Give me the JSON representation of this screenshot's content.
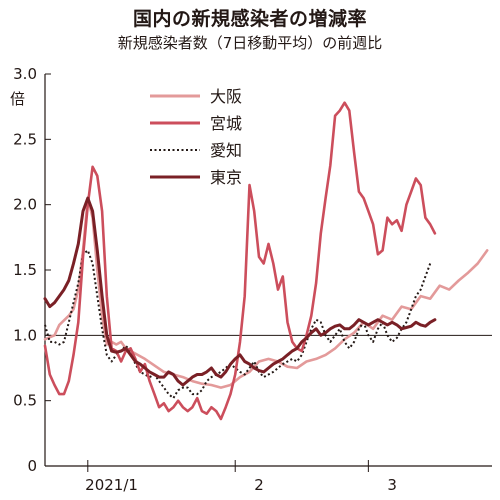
{
  "chart_data": {
    "type": "line",
    "title": "国内の新規感染者の増減率",
    "subtitle": "新規感染者数（7日移動平均）の前週比",
    "ylabel": "倍",
    "ylim": [
      0,
      3.0
    ],
    "yticks": [
      "0",
      "0.5",
      "1.0",
      "1.5",
      "2.0",
      "2.5",
      "3.0"
    ],
    "xticks": [
      {
        "label": "2021/1",
        "x": 14
      },
      {
        "label": "2",
        "x": 45
      },
      {
        "label": "3",
        "x": 73
      }
    ],
    "xlim": [
      0,
      94
    ],
    "xgrid_days": [
      9,
      40,
      68
    ],
    "reference_line": 1.0,
    "legend_placement": "top-center",
    "series": [
      {
        "name": "大阪",
        "color": "#e39a9a",
        "style": "solid",
        "points": [
          [
            0,
            0.97
          ],
          [
            2,
            1.0
          ],
          [
            3,
            1.08
          ],
          [
            5,
            1.15
          ],
          [
            6,
            1.2
          ],
          [
            7,
            1.35
          ],
          [
            8,
            1.65
          ],
          [
            9,
            2.05
          ],
          [
            10,
            1.9
          ],
          [
            11,
            1.5
          ],
          [
            12,
            1.15
          ],
          [
            13,
            0.93
          ],
          [
            14,
            0.95
          ],
          [
            15,
            0.93
          ],
          [
            16,
            0.95
          ],
          [
            17,
            0.9
          ],
          [
            19,
            0.86
          ],
          [
            21,
            0.82
          ],
          [
            23,
            0.77
          ],
          [
            25,
            0.72
          ],
          [
            27,
            0.7
          ],
          [
            29,
            0.68
          ],
          [
            31,
            0.65
          ],
          [
            33,
            0.63
          ],
          [
            35,
            0.62
          ],
          [
            37,
            0.6
          ],
          [
            39,
            0.62
          ],
          [
            41,
            0.68
          ],
          [
            43,
            0.72
          ],
          [
            45,
            0.8
          ],
          [
            47,
            0.82
          ],
          [
            49,
            0.8
          ],
          [
            51,
            0.76
          ],
          [
            53,
            0.75
          ],
          [
            55,
            0.8
          ],
          [
            57,
            0.82
          ],
          [
            59,
            0.85
          ],
          [
            61,
            0.9
          ],
          [
            63,
            0.97
          ],
          [
            65,
            1.02
          ],
          [
            67,
            1.1
          ],
          [
            69,
            1.05
          ],
          [
            71,
            1.15
          ],
          [
            73,
            1.12
          ],
          [
            75,
            1.22
          ],
          [
            77,
            1.2
          ],
          [
            79,
            1.3
          ],
          [
            81,
            1.28
          ],
          [
            83,
            1.38
          ],
          [
            85,
            1.35
          ],
          [
            87,
            1.42
          ],
          [
            89,
            1.48
          ],
          [
            91,
            1.55
          ],
          [
            93,
            1.65
          ]
        ]
      },
      {
        "name": "宮城",
        "color": "#cc4e5c",
        "style": "solid",
        "points": [
          [
            0,
            0.92
          ],
          [
            1,
            0.7
          ],
          [
            2,
            0.62
          ],
          [
            3,
            0.55
          ],
          [
            4,
            0.55
          ],
          [
            5,
            0.65
          ],
          [
            6,
            0.85
          ],
          [
            7,
            1.1
          ],
          [
            8,
            1.6
          ],
          [
            9,
            2.0
          ],
          [
            10,
            2.29
          ],
          [
            11,
            2.22
          ],
          [
            12,
            1.95
          ],
          [
            13,
            1.3
          ],
          [
            14,
            0.9
          ],
          [
            15,
            0.88
          ],
          [
            16,
            0.8
          ],
          [
            17,
            0.88
          ],
          [
            18,
            0.9
          ],
          [
            19,
            0.82
          ],
          [
            20,
            0.72
          ],
          [
            21,
            0.78
          ],
          [
            22,
            0.65
          ],
          [
            23,
            0.55
          ],
          [
            24,
            0.45
          ],
          [
            25,
            0.48
          ],
          [
            26,
            0.42
          ],
          [
            27,
            0.45
          ],
          [
            28,
            0.5
          ],
          [
            29,
            0.45
          ],
          [
            30,
            0.42
          ],
          [
            31,
            0.45
          ],
          [
            32,
            0.52
          ],
          [
            33,
            0.42
          ],
          [
            34,
            0.4
          ],
          [
            35,
            0.45
          ],
          [
            36,
            0.42
          ],
          [
            37,
            0.36
          ],
          [
            38,
            0.45
          ],
          [
            39,
            0.55
          ],
          [
            40,
            0.7
          ],
          [
            41,
            0.95
          ],
          [
            42,
            1.3
          ],
          [
            43,
            2.15
          ],
          [
            44,
            1.95
          ],
          [
            45,
            1.6
          ],
          [
            46,
            1.55
          ],
          [
            47,
            1.7
          ],
          [
            48,
            1.55
          ],
          [
            49,
            1.35
          ],
          [
            50,
            1.45
          ],
          [
            51,
            1.1
          ],
          [
            52,
            0.95
          ],
          [
            53,
            0.9
          ],
          [
            54,
            0.88
          ],
          [
            55,
            1.0
          ],
          [
            56,
            1.15
          ],
          [
            57,
            1.4
          ],
          [
            58,
            1.78
          ],
          [
            59,
            2.05
          ],
          [
            60,
            2.3
          ],
          [
            61,
            2.68
          ],
          [
            62,
            2.72
          ],
          [
            63,
            2.78
          ],
          [
            64,
            2.72
          ],
          [
            65,
            2.4
          ],
          [
            66,
            2.1
          ],
          [
            67,
            2.05
          ],
          [
            68,
            1.95
          ],
          [
            69,
            1.85
          ],
          [
            70,
            1.62
          ],
          [
            71,
            1.65
          ],
          [
            72,
            1.9
          ],
          [
            73,
            1.85
          ],
          [
            74,
            1.88
          ],
          [
            75,
            1.8
          ],
          [
            76,
            2.0
          ],
          [
            77,
            2.1
          ],
          [
            78,
            2.2
          ],
          [
            79,
            2.15
          ],
          [
            80,
            1.9
          ],
          [
            81,
            1.85
          ],
          [
            82,
            1.78
          ]
        ]
      },
      {
        "name": "愛知",
        "color": "#231815",
        "style": "dotted",
        "points": [
          [
            0,
            1.08
          ],
          [
            1,
            0.95
          ],
          [
            2,
            0.95
          ],
          [
            3,
            0.93
          ],
          [
            4,
            0.95
          ],
          [
            5,
            1.1
          ],
          [
            6,
            1.25
          ],
          [
            7,
            1.4
          ],
          [
            8,
            1.62
          ],
          [
            9,
            1.65
          ],
          [
            10,
            1.55
          ],
          [
            11,
            1.3
          ],
          [
            12,
            1.05
          ],
          [
            13,
            0.85
          ],
          [
            14,
            0.8
          ],
          [
            15,
            0.85
          ],
          [
            16,
            0.88
          ],
          [
            17,
            0.92
          ],
          [
            18,
            0.88
          ],
          [
            19,
            0.78
          ],
          [
            20,
            0.72
          ],
          [
            21,
            0.7
          ],
          [
            22,
            0.68
          ],
          [
            23,
            0.7
          ],
          [
            24,
            0.65
          ],
          [
            25,
            0.6
          ],
          [
            26,
            0.55
          ],
          [
            27,
            0.52
          ],
          [
            28,
            0.58
          ],
          [
            29,
            0.6
          ],
          [
            30,
            0.6
          ],
          [
            31,
            0.55
          ],
          [
            32,
            0.55
          ],
          [
            33,
            0.58
          ],
          [
            34,
            0.65
          ],
          [
            35,
            0.68
          ],
          [
            36,
            0.7
          ],
          [
            37,
            0.72
          ],
          [
            38,
            0.75
          ],
          [
            39,
            0.78
          ],
          [
            40,
            0.75
          ],
          [
            41,
            0.72
          ],
          [
            42,
            0.7
          ],
          [
            43,
            0.75
          ],
          [
            44,
            0.8
          ],
          [
            45,
            0.72
          ],
          [
            46,
            0.68
          ],
          [
            47,
            0.7
          ],
          [
            48,
            0.72
          ],
          [
            49,
            0.75
          ],
          [
            50,
            0.78
          ],
          [
            51,
            0.8
          ],
          [
            52,
            0.82
          ],
          [
            53,
            0.8
          ],
          [
            54,
            0.85
          ],
          [
            55,
            0.95
          ],
          [
            56,
            1.05
          ],
          [
            57,
            1.12
          ],
          [
            58,
            1.1
          ],
          [
            59,
            1.0
          ],
          [
            60,
            0.95
          ],
          [
            61,
            1.0
          ],
          [
            62,
            1.05
          ],
          [
            63,
            0.95
          ],
          [
            64,
            0.9
          ],
          [
            65,
            0.95
          ],
          [
            66,
            1.05
          ],
          [
            67,
            1.1
          ],
          [
            68,
            1.0
          ],
          [
            69,
            0.95
          ],
          [
            70,
            1.05
          ],
          [
            71,
            1.1
          ],
          [
            72,
            1.0
          ],
          [
            73,
            0.95
          ],
          [
            74,
            0.98
          ],
          [
            75,
            1.05
          ],
          [
            76,
            1.1
          ],
          [
            77,
            1.2
          ],
          [
            78,
            1.3
          ],
          [
            79,
            1.35
          ],
          [
            80,
            1.45
          ],
          [
            81,
            1.55
          ]
        ]
      },
      {
        "name": "東京",
        "color": "#7a2026",
        "style": "solid",
        "points": [
          [
            0,
            1.28
          ],
          [
            1,
            1.22
          ],
          [
            2,
            1.25
          ],
          [
            3,
            1.3
          ],
          [
            4,
            1.35
          ],
          [
            5,
            1.42
          ],
          [
            6,
            1.55
          ],
          [
            7,
            1.7
          ],
          [
            8,
            1.95
          ],
          [
            9,
            2.05
          ],
          [
            10,
            1.95
          ],
          [
            11,
            1.65
          ],
          [
            12,
            1.3
          ],
          [
            13,
            1.0
          ],
          [
            14,
            0.88
          ],
          [
            15,
            0.87
          ],
          [
            16,
            0.88
          ],
          [
            17,
            0.9
          ],
          [
            18,
            0.85
          ],
          [
            19,
            0.8
          ],
          [
            20,
            0.78
          ],
          [
            21,
            0.75
          ],
          [
            22,
            0.72
          ],
          [
            23,
            0.7
          ],
          [
            24,
            0.68
          ],
          [
            25,
            0.68
          ],
          [
            26,
            0.72
          ],
          [
            27,
            0.7
          ],
          [
            28,
            0.65
          ],
          [
            29,
            0.62
          ],
          [
            30,
            0.65
          ],
          [
            31,
            0.68
          ],
          [
            32,
            0.7
          ],
          [
            33,
            0.7
          ],
          [
            34,
            0.72
          ],
          [
            35,
            0.75
          ],
          [
            36,
            0.7
          ],
          [
            37,
            0.68
          ],
          [
            38,
            0.72
          ],
          [
            39,
            0.78
          ],
          [
            40,
            0.82
          ],
          [
            41,
            0.85
          ],
          [
            42,
            0.8
          ],
          [
            43,
            0.78
          ],
          [
            44,
            0.75
          ],
          [
            45,
            0.73
          ],
          [
            46,
            0.72
          ],
          [
            47,
            0.75
          ],
          [
            48,
            0.78
          ],
          [
            49,
            0.8
          ],
          [
            50,
            0.82
          ],
          [
            51,
            0.85
          ],
          [
            52,
            0.88
          ],
          [
            53,
            0.9
          ],
          [
            54,
            0.95
          ],
          [
            55,
            0.98
          ],
          [
            56,
            1.02
          ],
          [
            57,
            1.05
          ],
          [
            58,
            1.0
          ],
          [
            59,
            1.02
          ],
          [
            60,
            1.05
          ],
          [
            61,
            1.07
          ],
          [
            62,
            1.08
          ],
          [
            63,
            1.05
          ],
          [
            64,
            1.05
          ],
          [
            65,
            1.08
          ],
          [
            66,
            1.12
          ],
          [
            67,
            1.1
          ],
          [
            68,
            1.08
          ],
          [
            69,
            1.1
          ],
          [
            70,
            1.12
          ],
          [
            71,
            1.1
          ],
          [
            72,
            1.08
          ],
          [
            73,
            1.1
          ],
          [
            74,
            1.08
          ],
          [
            75,
            1.05
          ],
          [
            76,
            1.06
          ],
          [
            77,
            1.07
          ],
          [
            78,
            1.1
          ],
          [
            79,
            1.08
          ],
          [
            80,
            1.07
          ],
          [
            81,
            1.1
          ],
          [
            82,
            1.12
          ]
        ]
      }
    ]
  }
}
